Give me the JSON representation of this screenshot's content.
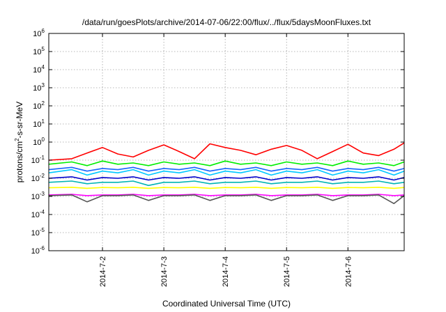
{
  "chart_data": {
    "type": "line",
    "title": "/data/run/goesPlots/archive/2014-07-06/22:00/flux/../flux/5daysMoonFluxes.txt",
    "xlabel": "Coordinated Universal Time (UTC)",
    "ylabel": {
      "prefix": "protons/cm",
      "superscript": "2",
      "suffix": "-s-sr-MeV"
    },
    "x_scale": "date",
    "xlim": [
      "2014-07-01 03:00",
      "2014-07-06 22:00"
    ],
    "x_ticks": [
      {
        "value": "2014-07-02 00:00",
        "label": "2014-7-2"
      },
      {
        "value": "2014-07-03 00:00",
        "label": "2014-7-3"
      },
      {
        "value": "2014-07-04 00:00",
        "label": "2014-7-4"
      },
      {
        "value": "2014-07-05 00:00",
        "label": "2014-7-5"
      },
      {
        "value": "2014-07-06 00:00",
        "label": "2014-7-6"
      }
    ],
    "y_scale": "log",
    "ylim": [
      1e-06,
      1000000.0
    ],
    "y_ticks": [
      {
        "value": 1e-06,
        "base": "10",
        "exp": "-6"
      },
      {
        "value": 1e-05,
        "base": "10",
        "exp": "-5"
      },
      {
        "value": 0.0001,
        "base": "10",
        "exp": "-4"
      },
      {
        "value": 0.001,
        "base": "10",
        "exp": "-3"
      },
      {
        "value": 0.01,
        "base": "10",
        "exp": "-2"
      },
      {
        "value": 0.1,
        "base": "10",
        "exp": "-1"
      },
      {
        "value": 1.0,
        "base": "10",
        "exp": "0"
      },
      {
        "value": 10.0,
        "base": "10",
        "exp": "1"
      },
      {
        "value": 100.0,
        "base": "10",
        "exp": "2"
      },
      {
        "value": 1000.0,
        "base": "10",
        "exp": "3"
      },
      {
        "value": 10000.0,
        "base": "10",
        "exp": "4"
      },
      {
        "value": 100000.0,
        "base": "10",
        "exp": "5"
      },
      {
        "value": 1000000.0,
        "base": "10",
        "exp": "6"
      }
    ],
    "grid": true,
    "series": [
      {
        "color": "#ff0000",
        "x": [
          "2014-07-01 03:00",
          "2014-07-01 12:00",
          "2014-07-01 18:00",
          "2014-07-02 00:00",
          "2014-07-02 06:00",
          "2014-07-02 12:00",
          "2014-07-02 18:00",
          "2014-07-03 00:00",
          "2014-07-03 06:00",
          "2014-07-03 12:00",
          "2014-07-03 18:00",
          "2014-07-04 00:00",
          "2014-07-04 06:00",
          "2014-07-04 12:00",
          "2014-07-04 18:00",
          "2014-07-05 00:00",
          "2014-07-05 06:00",
          "2014-07-05 12:00",
          "2014-07-05 18:00",
          "2014-07-06 00:00",
          "2014-07-06 06:00",
          "2014-07-06 12:00",
          "2014-07-06 18:00",
          "2014-07-06 22:00"
        ],
        "y": [
          0.1,
          0.12,
          0.25,
          0.5,
          0.22,
          0.15,
          0.35,
          0.7,
          0.3,
          0.12,
          0.8,
          0.5,
          0.35,
          0.2,
          0.4,
          0.65,
          0.35,
          0.12,
          0.3,
          0.75,
          0.25,
          0.18,
          0.4,
          0.9
        ]
      },
      {
        "color": "#00ee00",
        "x": [
          "2014-07-01 03:00",
          "2014-07-01 12:00",
          "2014-07-01 18:00",
          "2014-07-02 00:00",
          "2014-07-02 06:00",
          "2014-07-02 12:00",
          "2014-07-02 18:00",
          "2014-07-03 00:00",
          "2014-07-03 06:00",
          "2014-07-03 12:00",
          "2014-07-03 18:00",
          "2014-07-04 00:00",
          "2014-07-04 06:00",
          "2014-07-04 12:00",
          "2014-07-04 18:00",
          "2014-07-05 00:00",
          "2014-07-05 06:00",
          "2014-07-05 12:00",
          "2014-07-05 18:00",
          "2014-07-06 00:00",
          "2014-07-06 06:00",
          "2014-07-06 12:00",
          "2014-07-06 18:00",
          "2014-07-06 22:00"
        ],
        "y": [
          0.06,
          0.08,
          0.05,
          0.09,
          0.06,
          0.07,
          0.05,
          0.08,
          0.06,
          0.07,
          0.05,
          0.09,
          0.06,
          0.07,
          0.05,
          0.08,
          0.06,
          0.07,
          0.05,
          0.09,
          0.06,
          0.07,
          0.05,
          0.08
        ]
      },
      {
        "color": "#00c8ff",
        "x": [
          "2014-07-01 03:00",
          "2014-07-01 12:00",
          "2014-07-01 18:00",
          "2014-07-02 00:00",
          "2014-07-02 06:00",
          "2014-07-02 12:00",
          "2014-07-02 18:00",
          "2014-07-03 00:00",
          "2014-07-03 06:00",
          "2014-07-03 12:00",
          "2014-07-03 18:00",
          "2014-07-04 00:00",
          "2014-07-04 06:00",
          "2014-07-04 12:00",
          "2014-07-04 18:00",
          "2014-07-05 00:00",
          "2014-07-05 06:00",
          "2014-07-05 12:00",
          "2014-07-05 18:00",
          "2014-07-06 00:00",
          "2014-07-06 06:00",
          "2014-07-06 12:00",
          "2014-07-06 18:00",
          "2014-07-06 22:00"
        ],
        "y": [
          0.02,
          0.03,
          0.015,
          0.025,
          0.02,
          0.03,
          0.015,
          0.025,
          0.02,
          0.03,
          0.015,
          0.025,
          0.02,
          0.03,
          0.015,
          0.025,
          0.02,
          0.03,
          0.015,
          0.025,
          0.02,
          0.03,
          0.015,
          0.025
        ]
      },
      {
        "color": "#1464ff",
        "x": [
          "2014-07-01 03:00",
          "2014-07-01 12:00",
          "2014-07-01 18:00",
          "2014-07-02 00:00",
          "2014-07-02 06:00",
          "2014-07-02 12:00",
          "2014-07-02 18:00",
          "2014-07-03 00:00",
          "2014-07-03 06:00",
          "2014-07-03 12:00",
          "2014-07-03 18:00",
          "2014-07-04 00:00",
          "2014-07-04 06:00",
          "2014-07-04 12:00",
          "2014-07-04 18:00",
          "2014-07-05 00:00",
          "2014-07-05 06:00",
          "2014-07-05 12:00",
          "2014-07-05 18:00",
          "2014-07-06 00:00",
          "2014-07-06 06:00",
          "2014-07-06 12:00",
          "2014-07-06 18:00",
          "2014-07-06 22:00"
        ],
        "y": [
          0.03,
          0.04,
          0.025,
          0.035,
          0.03,
          0.04,
          0.025,
          0.035,
          0.03,
          0.04,
          0.025,
          0.035,
          0.03,
          0.04,
          0.025,
          0.035,
          0.03,
          0.04,
          0.025,
          0.035,
          0.03,
          0.04,
          0.025,
          0.035
        ]
      },
      {
        "color": "#0000cc",
        "x": [
          "2014-07-01 03:00",
          "2014-07-01 12:00",
          "2014-07-01 18:00",
          "2014-07-02 00:00",
          "2014-07-02 06:00",
          "2014-07-02 12:00",
          "2014-07-02 18:00",
          "2014-07-03 00:00",
          "2014-07-03 06:00",
          "2014-07-03 12:00",
          "2014-07-03 18:00",
          "2014-07-04 00:00",
          "2014-07-04 06:00",
          "2014-07-04 12:00",
          "2014-07-04 18:00",
          "2014-07-05 00:00",
          "2014-07-05 06:00",
          "2014-07-05 12:00",
          "2014-07-05 18:00",
          "2014-07-06 00:00",
          "2014-07-06 06:00",
          "2014-07-06 12:00",
          "2014-07-06 18:00",
          "2014-07-06 22:00"
        ],
        "y": [
          0.01,
          0.012,
          0.008,
          0.011,
          0.01,
          0.012,
          0.008,
          0.011,
          0.01,
          0.012,
          0.008,
          0.011,
          0.01,
          0.012,
          0.008,
          0.011,
          0.01,
          0.012,
          0.008,
          0.011,
          0.01,
          0.012,
          0.008,
          0.011
        ]
      },
      {
        "color": "#00b4b4",
        "x": [
          "2014-07-01 03:00",
          "2014-07-01 12:00",
          "2014-07-01 18:00",
          "2014-07-02 00:00",
          "2014-07-02 06:00",
          "2014-07-02 12:00",
          "2014-07-02 18:00",
          "2014-07-03 00:00",
          "2014-07-03 06:00",
          "2014-07-03 12:00",
          "2014-07-03 18:00",
          "2014-07-04 00:00",
          "2014-07-04 06:00",
          "2014-07-04 12:00",
          "2014-07-04 18:00",
          "2014-07-05 00:00",
          "2014-07-05 06:00",
          "2014-07-05 12:00",
          "2014-07-05 18:00",
          "2014-07-06 00:00",
          "2014-07-06 06:00",
          "2014-07-06 12:00",
          "2014-07-06 18:00",
          "2014-07-06 22:00"
        ],
        "y": [
          0.006,
          0.007,
          0.005,
          0.006,
          0.006,
          0.007,
          0.004,
          0.006,
          0.006,
          0.007,
          0.005,
          0.006,
          0.006,
          0.007,
          0.005,
          0.006,
          0.006,
          0.007,
          0.005,
          0.006,
          0.006,
          0.007,
          0.005,
          0.006
        ]
      },
      {
        "color": "#ffff00",
        "x": [
          "2014-07-01 03:00",
          "2014-07-01 12:00",
          "2014-07-01 18:00",
          "2014-07-02 00:00",
          "2014-07-02 06:00",
          "2014-07-02 12:00",
          "2014-07-02 18:00",
          "2014-07-03 00:00",
          "2014-07-03 06:00",
          "2014-07-03 12:00",
          "2014-07-03 18:00",
          "2014-07-04 00:00",
          "2014-07-04 06:00",
          "2014-07-04 12:00",
          "2014-07-04 18:00",
          "2014-07-05 00:00",
          "2014-07-05 06:00",
          "2014-07-05 12:00",
          "2014-07-05 18:00",
          "2014-07-06 00:00",
          "2014-07-06 06:00",
          "2014-07-06 12:00",
          "2014-07-06 18:00",
          "2014-07-06 22:00"
        ],
        "y": [
          0.003,
          0.0032,
          0.0028,
          0.0031,
          0.003,
          0.0032,
          0.0028,
          0.0031,
          0.003,
          0.0032,
          0.0028,
          0.0031,
          0.003,
          0.0032,
          0.0028,
          0.0031,
          0.003,
          0.0032,
          0.0028,
          0.0031,
          0.003,
          0.0032,
          0.0028,
          0.0031
        ]
      },
      {
        "color": "#ff00ff",
        "x": [
          "2014-07-01 03:00",
          "2014-07-01 12:00",
          "2014-07-01 18:00",
          "2014-07-02 00:00",
          "2014-07-02 06:00",
          "2014-07-02 12:00",
          "2014-07-02 18:00",
          "2014-07-03 00:00",
          "2014-07-03 06:00",
          "2014-07-03 12:00",
          "2014-07-03 18:00",
          "2014-07-04 00:00",
          "2014-07-04 06:00",
          "2014-07-04 12:00",
          "2014-07-04 18:00",
          "2014-07-05 00:00",
          "2014-07-05 06:00",
          "2014-07-05 12:00",
          "2014-07-05 18:00",
          "2014-07-06 00:00",
          "2014-07-06 06:00",
          "2014-07-06 12:00",
          "2014-07-06 18:00",
          "2014-07-06 22:00"
        ],
        "y": [
          0.0012,
          0.0013,
          0.0011,
          0.0012,
          0.0012,
          0.0013,
          0.0011,
          0.0012,
          0.0012,
          0.0013,
          0.0011,
          0.0012,
          0.0012,
          0.0013,
          0.0011,
          0.0012,
          0.0012,
          0.0013,
          0.0011,
          0.0012,
          0.0012,
          0.0013,
          0.0011,
          0.0012
        ]
      },
      {
        "color": "#555555",
        "x": [
          "2014-07-01 03:00",
          "2014-07-01 12:00",
          "2014-07-01 18:00",
          "2014-07-02 00:00",
          "2014-07-02 06:00",
          "2014-07-02 12:00",
          "2014-07-02 18:00",
          "2014-07-03 00:00",
          "2014-07-03 06:00",
          "2014-07-03 12:00",
          "2014-07-03 18:00",
          "2014-07-04 00:00",
          "2014-07-04 06:00",
          "2014-07-04 12:00",
          "2014-07-04 18:00",
          "2014-07-05 00:00",
          "2014-07-05 06:00",
          "2014-07-05 12:00",
          "2014-07-05 18:00",
          "2014-07-06 00:00",
          "2014-07-06 06:00",
          "2014-07-06 12:00",
          "2014-07-06 18:00",
          "2014-07-06 22:00"
        ],
        "y": [
          0.0011,
          0.0012,
          0.0005,
          0.0011,
          0.0011,
          0.0012,
          0.0006,
          0.0011,
          0.0011,
          0.0012,
          0.0006,
          0.0011,
          0.0011,
          0.0012,
          0.0006,
          0.0011,
          0.0011,
          0.0012,
          0.0006,
          0.0011,
          0.0011,
          0.0012,
          0.0004,
          0.0011
        ]
      }
    ]
  }
}
